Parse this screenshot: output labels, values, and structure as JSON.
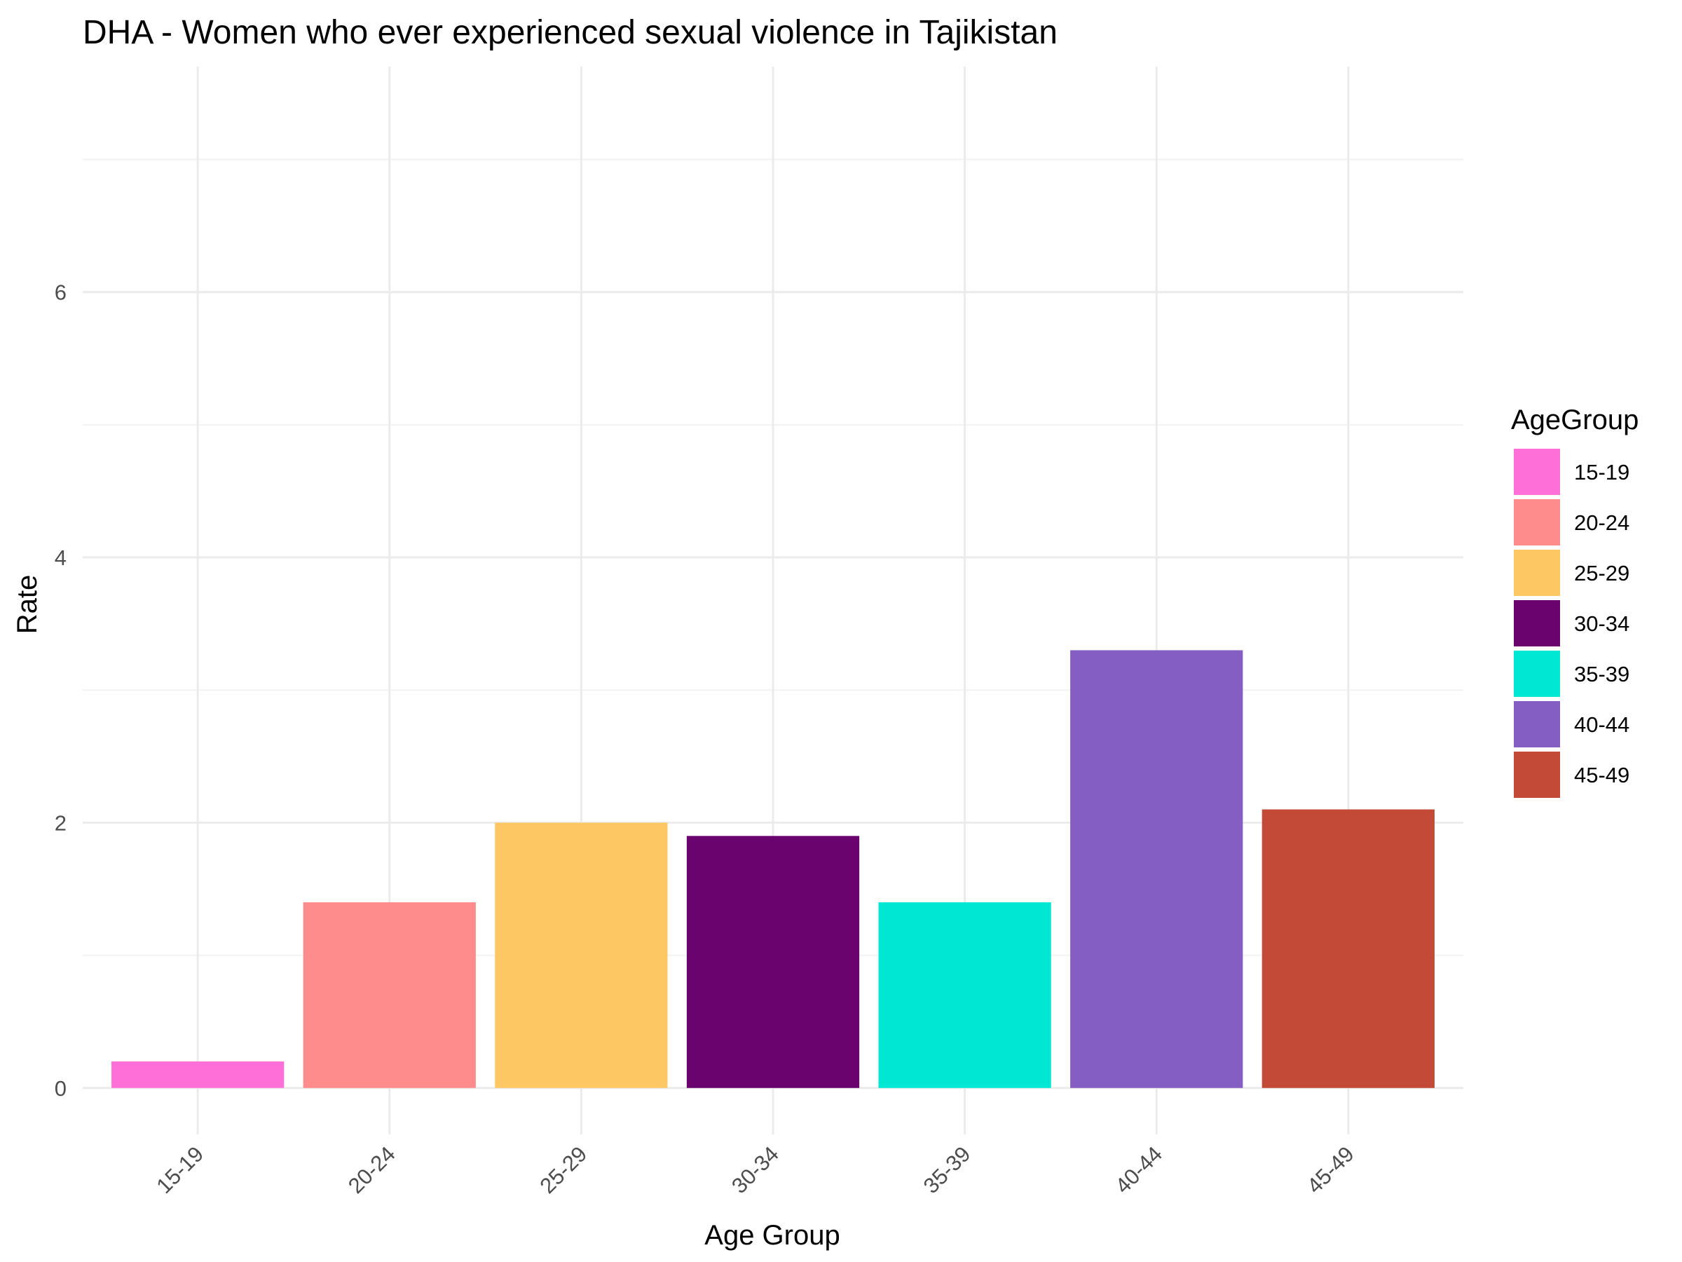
{
  "chart_data": {
    "type": "bar",
    "title": "DHA - Women who ever experienced sexual violence in Tajikistan",
    "xlabel": "Age Group",
    "ylabel": "Rate",
    "categories": [
      "15-19",
      "20-24",
      "25-29",
      "30-34",
      "35-39",
      "40-44",
      "45-49"
    ],
    "values": [
      0.2,
      1.4,
      2.0,
      1.9,
      1.4,
      3.3,
      2.1
    ],
    "colors": [
      "#FF6FD8",
      "#FF8C8C",
      "#FDC763",
      "#6A036D",
      "#00E8D4",
      "#845EC2",
      "#C34A36"
    ],
    "ylim": [
      -0.35,
      7.7
    ],
    "yticks": [
      0,
      2,
      4,
      6
    ],
    "grid": true,
    "legend": {
      "title": "AgeGroup",
      "position": "right",
      "entries": [
        "15-19",
        "20-24",
        "25-29",
        "30-34",
        "35-39",
        "40-44",
        "45-49"
      ]
    }
  }
}
